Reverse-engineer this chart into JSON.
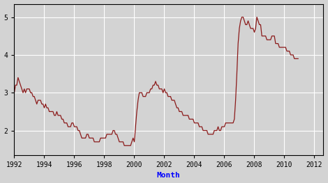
{
  "title": "",
  "xlabel": "Month",
  "ylabel": "",
  "line_color": "#8B1A1A",
  "background_color": "#D3D3D3",
  "figure_color": "#D3D3D3",
  "xlim_start": 1992.0,
  "xlim_end": 2012.583,
  "ylim_bottom": 1.35,
  "ylim_top": 5.35,
  "yticks": [
    2,
    3,
    4,
    5
  ],
  "xticks": [
    1992,
    1994,
    1996,
    1998,
    2000,
    2002,
    2004,
    2006,
    2008,
    2010,
    2012
  ],
  "values": [
    3.0,
    3.2,
    3.2,
    3.4,
    3.3,
    3.2,
    3.1,
    3.0,
    3.1,
    3.0,
    3.1,
    3.1,
    3.1,
    3.0,
    3.0,
    2.9,
    2.9,
    2.8,
    2.7,
    2.8,
    2.8,
    2.8,
    2.7,
    2.7,
    2.6,
    2.7,
    2.6,
    2.6,
    2.5,
    2.5,
    2.5,
    2.5,
    2.4,
    2.4,
    2.5,
    2.4,
    2.4,
    2.4,
    2.3,
    2.3,
    2.2,
    2.2,
    2.2,
    2.1,
    2.1,
    2.1,
    2.2,
    2.2,
    2.1,
    2.1,
    2.1,
    2.0,
    2.0,
    1.9,
    1.8,
    1.8,
    1.8,
    1.8,
    1.9,
    1.9,
    1.8,
    1.8,
    1.8,
    1.8,
    1.7,
    1.7,
    1.7,
    1.7,
    1.7,
    1.8,
    1.8,
    1.8,
    1.8,
    1.8,
    1.9,
    1.9,
    1.9,
    1.9,
    1.9,
    2.0,
    2.0,
    1.9,
    1.9,
    1.8,
    1.7,
    1.7,
    1.7,
    1.7,
    1.6,
    1.6,
    1.6,
    1.6,
    1.6,
    1.6,
    1.7,
    1.8,
    1.7,
    2.1,
    2.5,
    2.8,
    3.0,
    3.0,
    3.0,
    2.9,
    2.9,
    2.9,
    3.0,
    3.0,
    3.0,
    3.1,
    3.1,
    3.2,
    3.2,
    3.3,
    3.2,
    3.2,
    3.1,
    3.1,
    3.1,
    3.0,
    3.1,
    3.0,
    3.0,
    2.9,
    2.9,
    2.9,
    2.8,
    2.8,
    2.8,
    2.7,
    2.6,
    2.6,
    2.5,
    2.5,
    2.5,
    2.4,
    2.4,
    2.4,
    2.4,
    2.4,
    2.3,
    2.3,
    2.3,
    2.3,
    2.2,
    2.2,
    2.2,
    2.2,
    2.1,
    2.1,
    2.1,
    2.0,
    2.0,
    2.0,
    2.0,
    1.9,
    1.9,
    1.9,
    1.9,
    1.9,
    2.0,
    2.0,
    2.0,
    2.1,
    2.0,
    2.0,
    2.1,
    2.1,
    2.1,
    2.2,
    2.2,
    2.2,
    2.2,
    2.2,
    2.2,
    2.2,
    2.3,
    2.8,
    3.5,
    4.3,
    4.7,
    4.9,
    5.0,
    5.0,
    4.9,
    4.8,
    4.8,
    4.9,
    4.8,
    4.7,
    4.7,
    4.7,
    4.6,
    4.7,
    5.0,
    4.9,
    4.8,
    4.8,
    4.5,
    4.5,
    4.5,
    4.5,
    4.4,
    4.4,
    4.4,
    4.4,
    4.5,
    4.5,
    4.5,
    4.3,
    4.3,
    4.3,
    4.2,
    4.2,
    4.2,
    4.2,
    4.2,
    4.2,
    4.1,
    4.1,
    4.1,
    4.0,
    4.0,
    4.0,
    3.9,
    3.9,
    3.9,
    3.9
  ]
}
